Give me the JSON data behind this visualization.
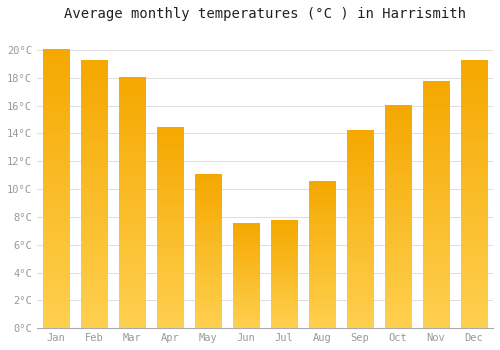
{
  "months": [
    "Jan",
    "Feb",
    "Mar",
    "Apr",
    "May",
    "Jun",
    "Jul",
    "Aug",
    "Sep",
    "Oct",
    "Nov",
    "Dec"
  ],
  "values": [
    20.0,
    19.2,
    18.0,
    14.4,
    11.0,
    7.5,
    7.7,
    10.5,
    14.2,
    16.0,
    17.7,
    19.2
  ],
  "bar_color_light": "#FFD050",
  "bar_color_dark": "#F5A800",
  "title": "Average monthly temperatures (°C ) in Harrismith",
  "title_fontsize": 10,
  "ylabel_ticks": [
    "0°C",
    "2°C",
    "4°C",
    "6°C",
    "8°C",
    "10°C",
    "12°C",
    "14°C",
    "16°C",
    "18°C",
    "20°C"
  ],
  "ytick_values": [
    0,
    2,
    4,
    6,
    8,
    10,
    12,
    14,
    16,
    18,
    20
  ],
  "ylim": [
    0,
    21.5
  ],
  "background_color": "#FFFFFF",
  "plot_bg_color": "#FFFFFF",
  "grid_color": "#DDDDDD",
  "tick_label_color": "#999999",
  "title_color": "#222222",
  "font_family": "monospace",
  "bar_width": 0.7
}
